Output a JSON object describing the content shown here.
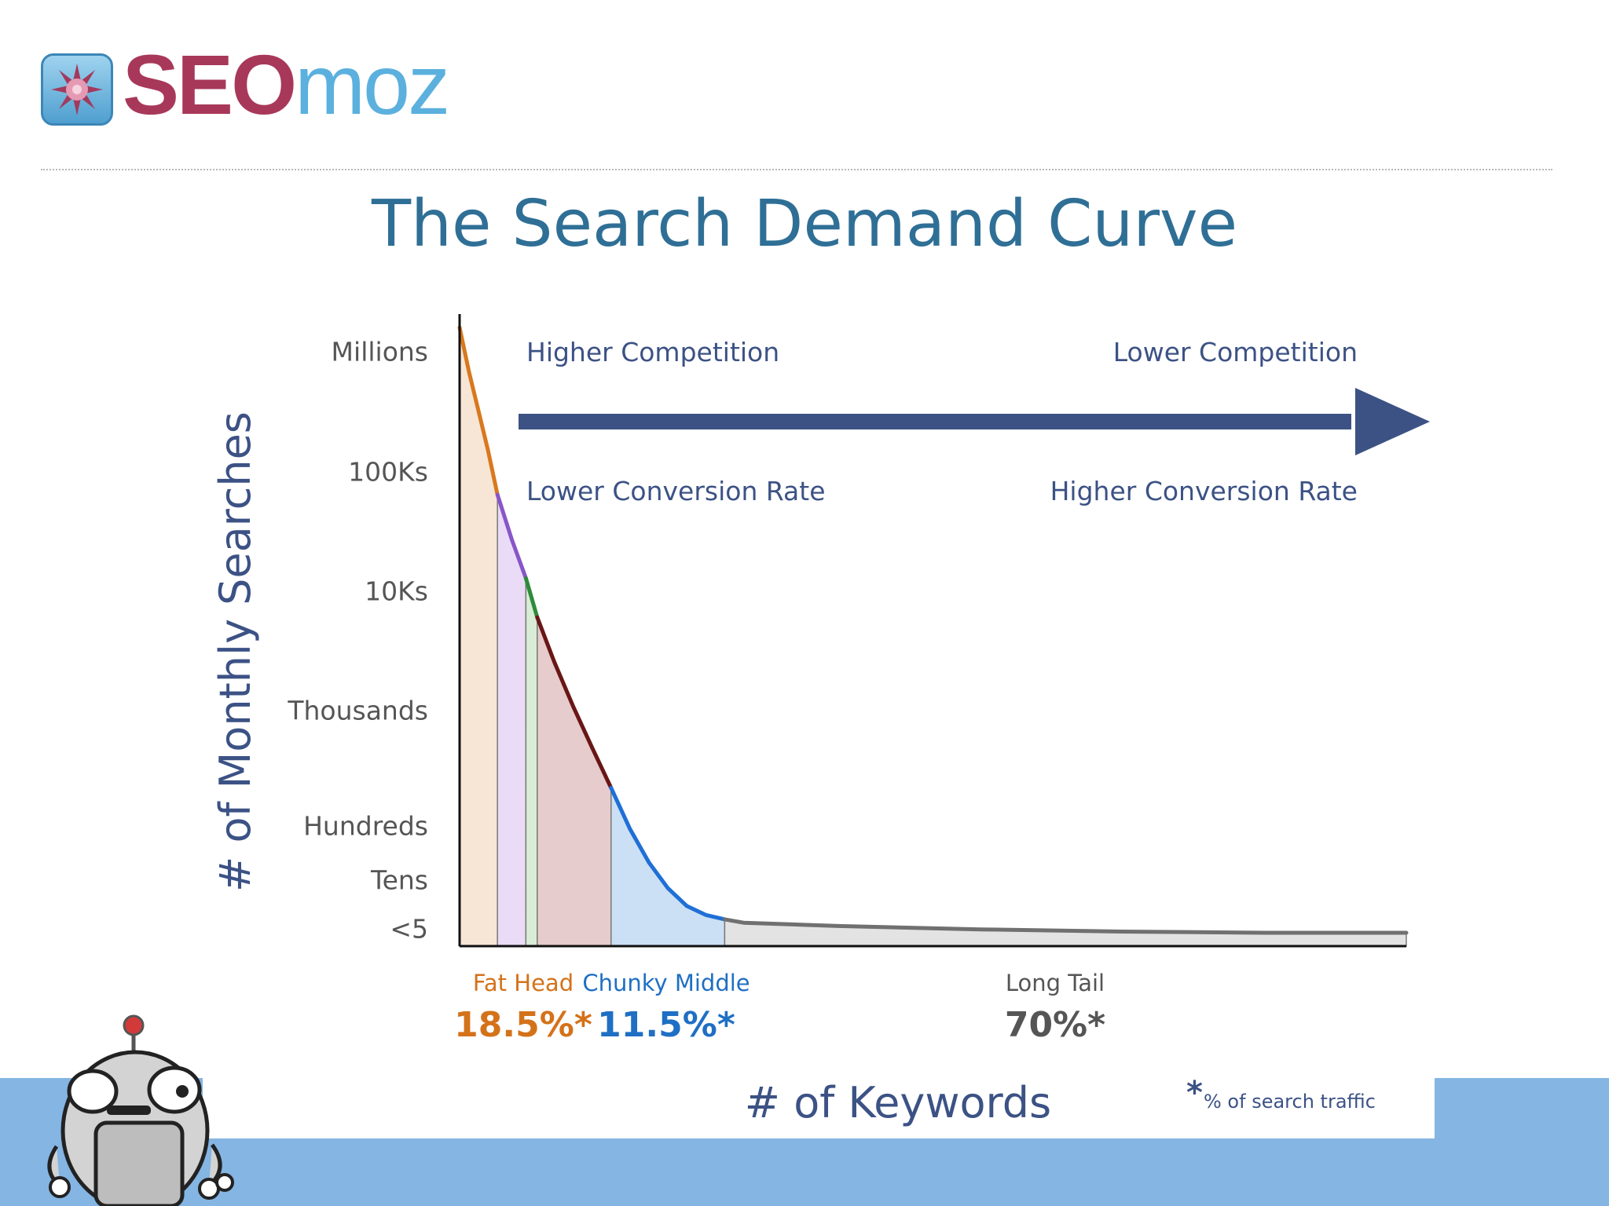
{
  "logo": {
    "seo": "SEO",
    "moz": "moz"
  },
  "slide_title": "The Search Demand Curve",
  "chart_data": {
    "type": "area",
    "title": "The Search Demand Curve",
    "xlabel": "# of Keywords",
    "ylabel": "# of Monthly Searches",
    "y_tick_labels": [
      "Millions",
      "100Ks",
      "10Ks",
      "Thousands",
      "Hundreds",
      "Tens",
      "<5"
    ],
    "y_scale": "log",
    "x_range": [
      0,
      100
    ],
    "y_range_log10": [
      0.5,
      6.1
    ],
    "series": [
      {
        "name": "Fat Head",
        "color": "#d9781e",
        "fill": "#f7e6d6",
        "x": [
          0,
          1,
          2,
          3,
          4
        ],
        "y_log10": [
          6.05,
          5.65,
          5.3,
          4.95,
          4.55
        ]
      },
      {
        "name": "",
        "color": "#8856c8",
        "fill": "#eadcf7",
        "x": [
          4,
          5.5,
          7
        ],
        "y_log10": [
          4.55,
          4.15,
          3.8
        ]
      },
      {
        "name": "",
        "color": "#2f8a3a",
        "fill": "#d8ecd6",
        "x": [
          7,
          8.2
        ],
        "y_log10": [
          3.8,
          3.45
        ]
      },
      {
        "name": "",
        "color": "#6a1616",
        "fill": "#e6cccc",
        "x": [
          8.2,
          10,
          12,
          14,
          16
        ],
        "y_log10": [
          3.45,
          3.05,
          2.65,
          2.28,
          1.92
        ]
      },
      {
        "name": "Chunky Middle",
        "color": "#1f6fd6",
        "fill": "#cce0f5",
        "x": [
          16,
          18,
          20,
          22,
          24,
          26,
          28
        ],
        "y_log10": [
          1.92,
          1.55,
          1.25,
          1.02,
          0.86,
          0.78,
          0.74
        ]
      },
      {
        "name": "Long Tail",
        "color": "#707070",
        "fill": "#e3e3e3",
        "x": [
          28,
          30,
          40,
          55,
          70,
          85,
          100
        ],
        "y_log10": [
          0.74,
          0.71,
          0.68,
          0.65,
          0.63,
          0.62,
          0.62
        ]
      }
    ],
    "section_labels": [
      {
        "label": "Fat Head",
        "value": "18.5%*",
        "color": "#d4721a"
      },
      {
        "label": "Chunky Middle",
        "value": "11.5%*",
        "color": "#1f6fc4"
      },
      {
        "label": "Long Tail",
        "value": "70%*",
        "color": "#555555"
      }
    ],
    "arrow": {
      "top_left": "Higher Competition",
      "top_right": "Lower Competition",
      "bottom_left": "Lower Conversion Rate",
      "bottom_right": "Higher Conversion Rate",
      "color": "#3c5285"
    },
    "footnote": {
      "mark": "*",
      "text": "% of search traffic"
    },
    "grid": false,
    "legend": "none"
  }
}
